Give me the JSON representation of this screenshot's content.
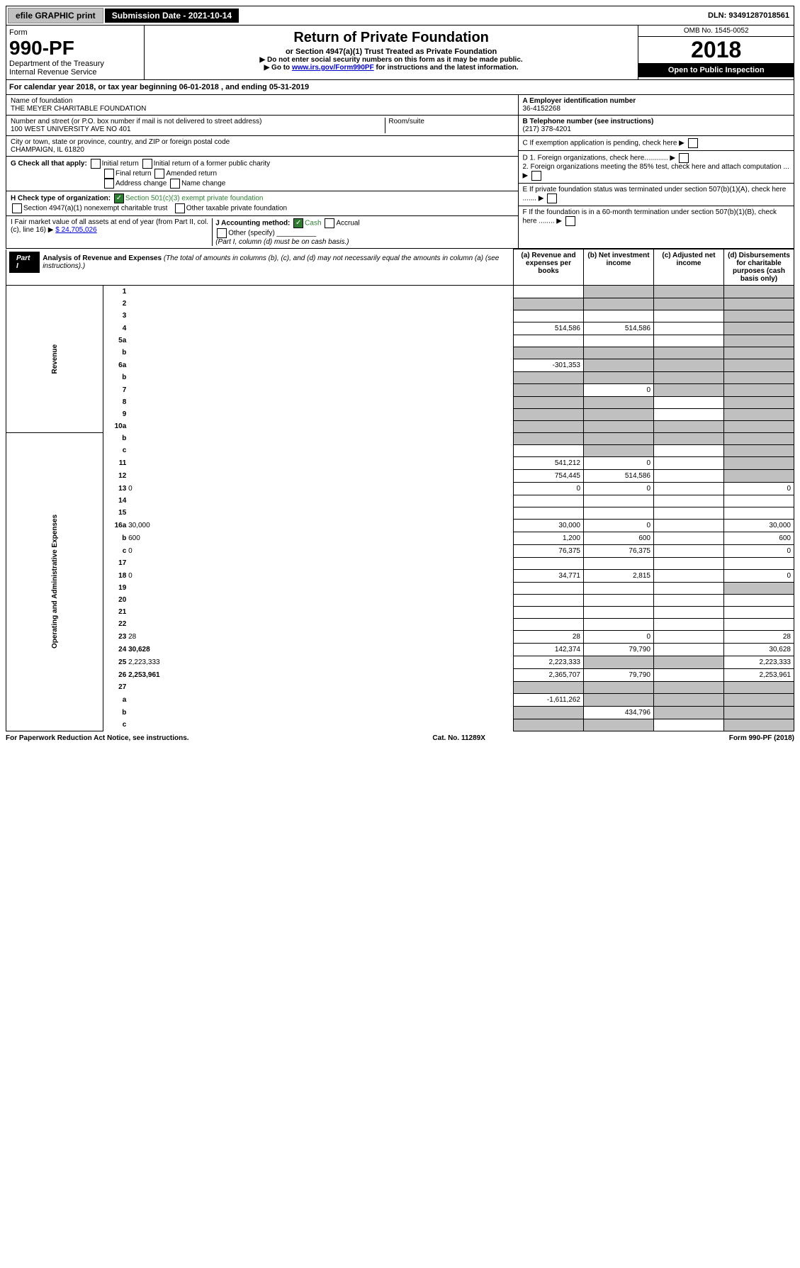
{
  "top": {
    "efile": "efile GRAPHIC print",
    "sub_label": "Submission Date - 2021-10-14",
    "dln": "DLN: 93491287018561"
  },
  "header": {
    "form_label": "Form",
    "form_num": "990-PF",
    "dept": "Department of the Treasury",
    "irs": "Internal Revenue Service",
    "title": "Return of Private Foundation",
    "subtitle": "or Section 4947(a)(1) Trust Treated as Private Foundation",
    "inst1": "Do not enter social security numbers on this form as it may be made public.",
    "inst2_pre": "Go to ",
    "inst2_link": "www.irs.gov/Form990PF",
    "inst2_post": " for instructions and the latest information.",
    "omb": "OMB No. 1545-0052",
    "year": "2018",
    "open": "Open to Public Inspection"
  },
  "calyear": {
    "text_pre": "For calendar year 2018, or tax year beginning ",
    "begin": "06-01-2018",
    "text_mid": " , and ending ",
    "end": "05-31-2019"
  },
  "id": {
    "name_label": "Name of foundation",
    "name": "THE MEYER CHARITABLE FOUNDATION",
    "addr_label": "Number and street (or P.O. box number if mail is not delivered to street address)",
    "addr": "100 WEST UNIVERSITY AVE NO 401",
    "room_label": "Room/suite",
    "city_label": "City or town, state or province, country, and ZIP or foreign postal code",
    "city": "CHAMPAIGN, IL  61820",
    "A_label": "A Employer identification number",
    "A_val": "36-4152268",
    "B_label": "B Telephone number (see instructions)",
    "B_val": "(217) 378-4201",
    "C_label": "C If exemption application is pending, check here",
    "D1": "D 1. Foreign organizations, check here............",
    "D2": "2. Foreign organizations meeting the 85% test, check here and attach computation ...",
    "E": "E  If private foundation status was terminated under section 507(b)(1)(A), check here .......",
    "F": "F  If the foundation is in a 60-month termination under section 507(b)(1)(B), check here ........"
  },
  "G": {
    "label": "G Check all that apply:",
    "opts": [
      "Initial return",
      "Initial return of a former public charity",
      "Final return",
      "Amended return",
      "Address change",
      "Name change"
    ]
  },
  "H": {
    "label": "H Check type of organization:",
    "opt1": "Section 501(c)(3) exempt private foundation",
    "opt2": "Section 4947(a)(1) nonexempt charitable trust",
    "opt3": "Other taxable private foundation"
  },
  "I": {
    "label": "I Fair market value of all assets at end of year (from Part II, col. (c), line 16)",
    "amt": "$  24,705,026"
  },
  "J": {
    "label": "J Accounting method:",
    "cash": "Cash",
    "accrual": "Accrual",
    "other": "Other (specify)",
    "note": "(Part I, column (d) must be on cash basis.)"
  },
  "part1": {
    "tag": "Part I",
    "title": "Analysis of Revenue and Expenses",
    "title_note": "(The total of amounts in columns (b), (c), and (d) may not necessarily equal the amounts in column (a) (see instructions).)",
    "col_a": "(a)   Revenue and expenses per books",
    "col_b": "(b)   Net investment income",
    "col_c": "(c)   Adjusted net income",
    "col_d": "(d)   Disbursements for charitable purposes (cash basis only)",
    "rev_label": "Revenue",
    "exp_label": "Operating and Administrative Expenses"
  },
  "rows": [
    {
      "n": "1",
      "d": "",
      "a": "",
      "b": "",
      "c": "",
      "sb": true,
      "sc": true,
      "sd": true
    },
    {
      "n": "2",
      "d": "",
      "a": "",
      "b": "",
      "c": "",
      "sa": true,
      "sb": true,
      "sc": true,
      "sd": true
    },
    {
      "n": "3",
      "d": "",
      "a": "",
      "b": "",
      "c": "",
      "sd": true
    },
    {
      "n": "4",
      "d": "",
      "a": "514,586",
      "b": "514,586",
      "c": "",
      "sd": true
    },
    {
      "n": "5a",
      "d": "",
      "a": "",
      "b": "",
      "c": "",
      "sd": true
    },
    {
      "n": "b",
      "d": "",
      "a": "",
      "b": "",
      "c": "",
      "sa": true,
      "sb": true,
      "sc": true,
      "sd": true
    },
    {
      "n": "6a",
      "d": "",
      "a": "-301,353",
      "b": "",
      "c": "",
      "sb": true,
      "sc": true,
      "sd": true
    },
    {
      "n": "b",
      "d": "",
      "a": "",
      "b": "",
      "c": "",
      "sa": true,
      "sb": true,
      "sc": true,
      "sd": true
    },
    {
      "n": "7",
      "d": "",
      "a": "",
      "b": "0",
      "c": "",
      "sa": true,
      "sc": true,
      "sd": true
    },
    {
      "n": "8",
      "d": "",
      "a": "",
      "b": "",
      "c": "",
      "sa": true,
      "sb": true,
      "sd": true
    },
    {
      "n": "9",
      "d": "",
      "a": "",
      "b": "",
      "c": "",
      "sa": true,
      "sb": true,
      "sd": true
    },
    {
      "n": "10a",
      "d": "",
      "a": "",
      "b": "",
      "c": "",
      "sa": true,
      "sb": true,
      "sc": true,
      "sd": true
    },
    {
      "n": "b",
      "d": "",
      "a": "",
      "b": "",
      "c": "",
      "sa": true,
      "sb": true,
      "sc": true,
      "sd": true
    },
    {
      "n": "c",
      "d": "",
      "a": "",
      "b": "",
      "c": "",
      "sb": true,
      "sd": true
    },
    {
      "n": "11",
      "d": "",
      "a": "541,212",
      "b": "0",
      "c": "",
      "sd": true
    },
    {
      "n": "12",
      "d": "",
      "a": "754,445",
      "b": "514,586",
      "c": "",
      "bold": true,
      "sd": true
    },
    {
      "n": "13",
      "d": "0",
      "a": "0",
      "b": "0",
      "c": ""
    },
    {
      "n": "14",
      "d": "",
      "a": "",
      "b": "",
      "c": ""
    },
    {
      "n": "15",
      "d": "",
      "a": "",
      "b": "",
      "c": ""
    },
    {
      "n": "16a",
      "d": "30,000",
      "a": "30,000",
      "b": "0",
      "c": ""
    },
    {
      "n": "b",
      "d": "600",
      "a": "1,200",
      "b": "600",
      "c": ""
    },
    {
      "n": "c",
      "d": "0",
      "a": "76,375",
      "b": "76,375",
      "c": ""
    },
    {
      "n": "17",
      "d": "",
      "a": "",
      "b": "",
      "c": ""
    },
    {
      "n": "18",
      "d": "0",
      "a": "34,771",
      "b": "2,815",
      "c": ""
    },
    {
      "n": "19",
      "d": "",
      "a": "",
      "b": "",
      "c": "",
      "sd": true
    },
    {
      "n": "20",
      "d": "",
      "a": "",
      "b": "",
      "c": ""
    },
    {
      "n": "21",
      "d": "",
      "a": "",
      "b": "",
      "c": ""
    },
    {
      "n": "22",
      "d": "",
      "a": "",
      "b": "",
      "c": ""
    },
    {
      "n": "23",
      "d": "28",
      "a": "28",
      "b": "0",
      "c": ""
    },
    {
      "n": "24",
      "d": "30,628",
      "a": "142,374",
      "b": "79,790",
      "c": "",
      "bold": true
    },
    {
      "n": "25",
      "d": "2,223,333",
      "a": "2,223,333",
      "b": "",
      "c": "",
      "sb": true,
      "sc": true
    },
    {
      "n": "26",
      "d": "2,253,961",
      "a": "2,365,707",
      "b": "79,790",
      "c": "",
      "bold": true
    },
    {
      "n": "27",
      "d": "",
      "a": "",
      "b": "",
      "c": "",
      "sa": true,
      "sb": true,
      "sc": true,
      "sd": true
    },
    {
      "n": "a",
      "d": "",
      "a": "-1,611,262",
      "b": "",
      "c": "",
      "bold": true,
      "sb": true,
      "sc": true,
      "sd": true
    },
    {
      "n": "b",
      "d": "",
      "a": "",
      "b": "434,796",
      "c": "",
      "bold": true,
      "sa": true,
      "sc": true,
      "sd": true
    },
    {
      "n": "c",
      "d": "",
      "a": "",
      "b": "",
      "c": "",
      "bold": true,
      "sa": true,
      "sb": true,
      "sd": true
    }
  ],
  "footer": {
    "left": "For Paperwork Reduction Act Notice, see instructions.",
    "mid": "Cat. No. 11289X",
    "right": "Form 990-PF (2018)"
  }
}
